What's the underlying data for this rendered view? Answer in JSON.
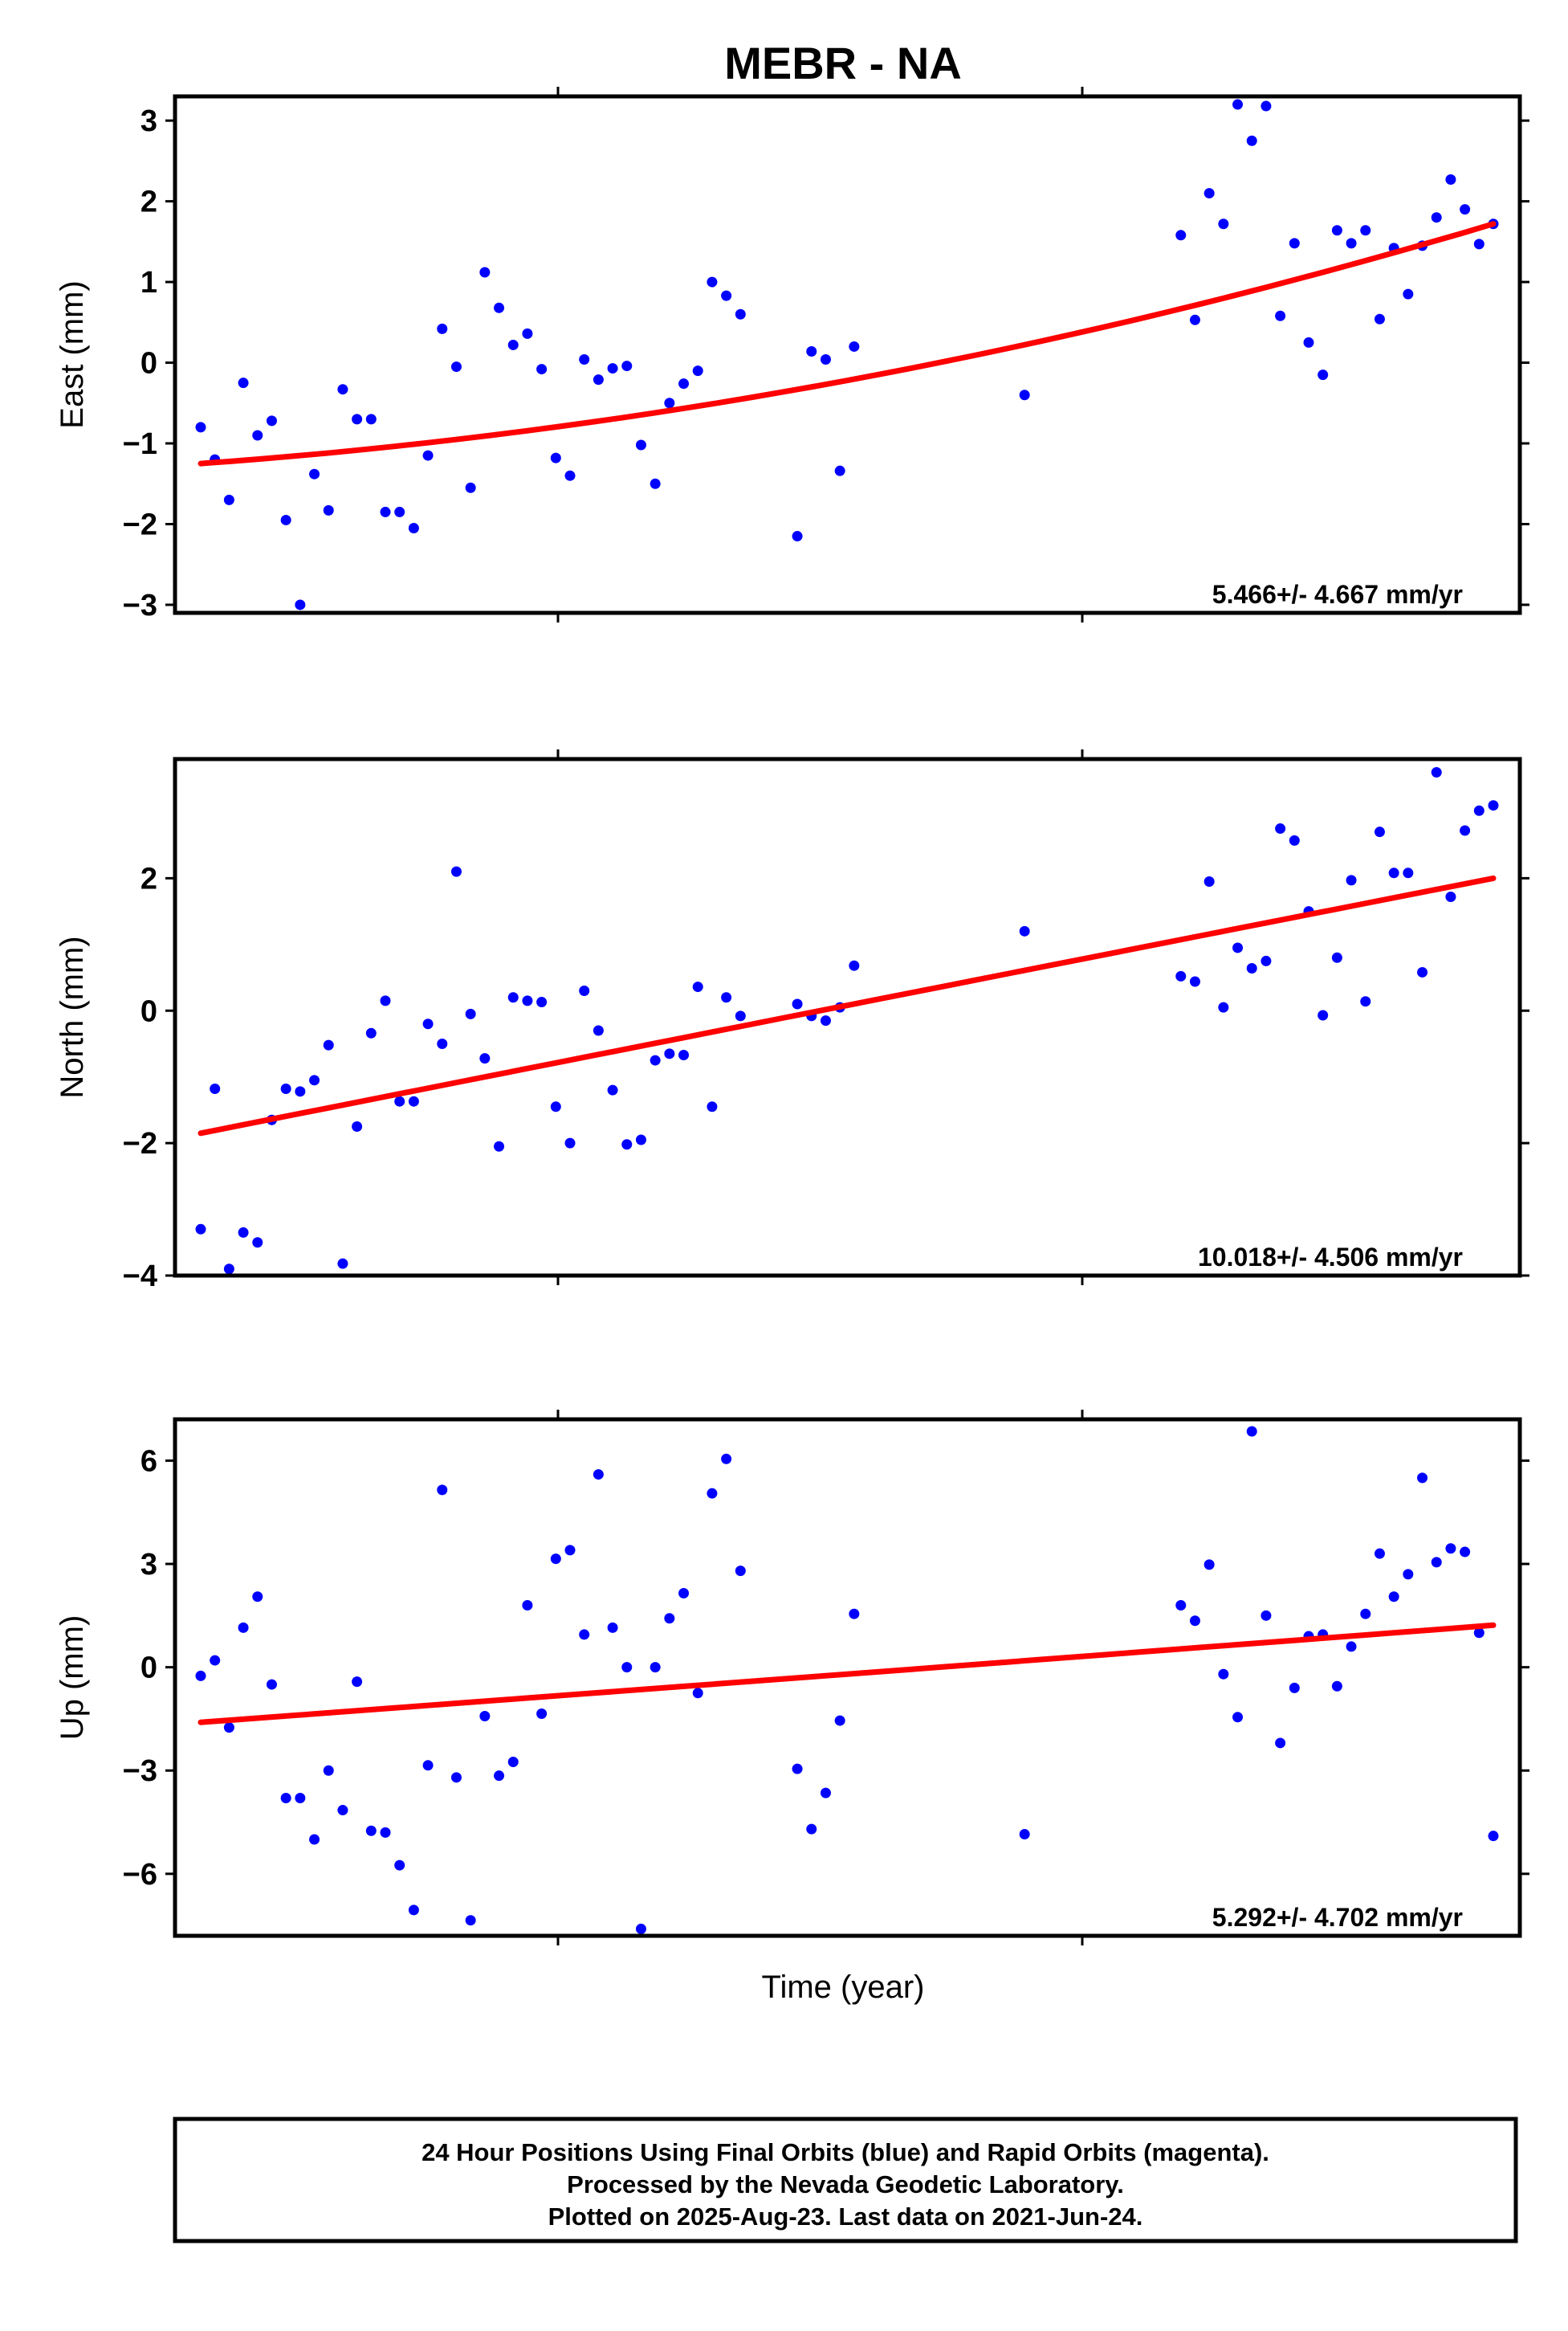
{
  "title": "MEBR - NA",
  "xlabel": "Time (year)",
  "colors": {
    "points": "#0000ff",
    "fit": "#ff0000",
    "frame": "#000000"
  },
  "footer": {
    "line1": "24 Hour Positions Using Final Orbits (blue) and Rapid Orbits (magenta).",
    "line2": "Processed by the Nevada Geodetic Laboratory.",
    "line3": "Plotted on 2025-Aug-23. Last data on 2021-Jun-24."
  },
  "chart_data": [
    {
      "type": "scatter",
      "ylabel": "East (mm)",
      "ylim": [
        -3.1,
        3.3
      ],
      "yticks": [
        -3,
        -2,
        -1,
        0,
        1,
        2,
        3
      ],
      "rate_label": "5.466+/- 4.667 mm/yr",
      "grid": false,
      "fit": [
        [
          0,
          -1.25
        ],
        [
          0.5,
          -0.22
        ],
        [
          1,
          1.72
        ]
      ],
      "points": [
        [
          -1,
          -0.8
        ],
        [
          0,
          -1.2
        ],
        [
          1,
          -1.7
        ],
        [
          2,
          -0.25
        ],
        [
          3,
          -0.9
        ],
        [
          4,
          -0.72
        ],
        [
          5,
          -1.95
        ],
        [
          6,
          -3.0
        ],
        [
          7,
          -1.38
        ],
        [
          8,
          -1.83
        ],
        [
          9,
          -0.33
        ],
        [
          10,
          -0.7
        ],
        [
          11,
          -0.7
        ],
        [
          12,
          -1.85
        ],
        [
          13,
          -1.85
        ],
        [
          14,
          -2.05
        ],
        [
          15,
          -1.15
        ],
        [
          16,
          0.42
        ],
        [
          17,
          -0.05
        ],
        [
          18,
          -1.55
        ],
        [
          19,
          1.12
        ],
        [
          20,
          0.68
        ],
        [
          21,
          0.22
        ],
        [
          22,
          0.36
        ],
        [
          23,
          -0.08
        ],
        [
          24,
          -1.18
        ],
        [
          25,
          -1.4
        ],
        [
          26,
          0.04
        ],
        [
          27,
          -0.21
        ],
        [
          28,
          -0.07
        ],
        [
          29,
          -0.04
        ],
        [
          30,
          -1.02
        ],
        [
          31,
          -1.5
        ],
        [
          32,
          -0.5
        ],
        [
          33,
          -0.26
        ],
        [
          34,
          -0.1
        ],
        [
          35,
          1.0
        ],
        [
          36,
          0.83
        ],
        [
          37,
          0.6
        ],
        [
          41,
          -2.15
        ],
        [
          42,
          0.14
        ],
        [
          43,
          0.04
        ],
        [
          44,
          -1.34
        ],
        [
          45,
          0.2
        ],
        [
          57,
          -0.4
        ],
        [
          68,
          1.58
        ],
        [
          69,
          0.53
        ],
        [
          70,
          2.1
        ],
        [
          71,
          1.72
        ],
        [
          72,
          3.2
        ],
        [
          73,
          2.75
        ],
        [
          74,
          3.18
        ],
        [
          75,
          0.58
        ],
        [
          76,
          1.48
        ],
        [
          77,
          0.25
        ],
        [
          78,
          -0.15
        ],
        [
          79,
          1.64
        ],
        [
          80,
          1.48
        ],
        [
          81,
          1.64
        ],
        [
          82,
          0.54
        ],
        [
          83,
          1.42
        ],
        [
          84,
          0.85
        ],
        [
          85,
          1.45
        ],
        [
          86,
          1.8
        ],
        [
          87,
          2.27
        ],
        [
          88,
          1.9
        ],
        [
          89,
          1.47
        ],
        [
          90,
          1.72
        ]
      ]
    },
    {
      "type": "scatter",
      "ylabel": "North (mm)",
      "ylim": [
        -4,
        3.8
      ],
      "yticks": [
        -4,
        -2,
        0,
        2
      ],
      "rate_label": "10.018+/- 4.506 mm/yr",
      "grid": false,
      "fit": [
        [
          0,
          -1.85
        ],
        [
          0.5,
          0.08
        ],
        [
          1,
          2.0
        ]
      ],
      "points": [
        [
          -1,
          -3.3
        ],
        [
          0,
          -1.18
        ],
        [
          1,
          -3.9
        ],
        [
          2,
          -3.35
        ],
        [
          3,
          -3.5
        ],
        [
          4,
          -1.65
        ],
        [
          5,
          -1.18
        ],
        [
          6,
          -1.22
        ],
        [
          7,
          -1.05
        ],
        [
          8,
          -0.52
        ],
        [
          9,
          -3.82
        ],
        [
          10,
          -1.75
        ],
        [
          11,
          -0.34
        ],
        [
          12,
          0.15
        ],
        [
          13,
          -1.37
        ],
        [
          14,
          -1.37
        ],
        [
          15,
          -0.2
        ],
        [
          16,
          -0.5
        ],
        [
          17,
          2.1
        ],
        [
          18,
          -0.05
        ],
        [
          19,
          -0.72
        ],
        [
          20,
          -2.05
        ],
        [
          21,
          0.2
        ],
        [
          22,
          0.15
        ],
        [
          23,
          0.13
        ],
        [
          24,
          -1.45
        ],
        [
          25,
          -2.0
        ],
        [
          26,
          0.3
        ],
        [
          27,
          -0.3
        ],
        [
          28,
          -1.2
        ],
        [
          29,
          -2.02
        ],
        [
          30,
          -1.95
        ],
        [
          31,
          -0.75
        ],
        [
          32,
          -0.65
        ],
        [
          33,
          -0.67
        ],
        [
          34,
          0.36
        ],
        [
          35,
          -1.45
        ],
        [
          36,
          0.2
        ],
        [
          37,
          -0.08
        ],
        [
          41,
          0.1
        ],
        [
          42,
          -0.08
        ],
        [
          43,
          -0.15
        ],
        [
          44,
          0.05
        ],
        [
          45,
          0.68
        ],
        [
          57,
          1.2
        ],
        [
          68,
          0.52
        ],
        [
          69,
          0.44
        ],
        [
          70,
          1.95
        ],
        [
          71,
          0.05
        ],
        [
          72,
          0.95
        ],
        [
          73,
          0.64
        ],
        [
          74,
          0.75
        ],
        [
          75,
          2.75
        ],
        [
          76,
          2.57
        ],
        [
          77,
          1.5
        ],
        [
          78,
          -0.07
        ],
        [
          79,
          0.8
        ],
        [
          80,
          1.97
        ],
        [
          81,
          0.14
        ],
        [
          82,
          2.7
        ],
        [
          83,
          2.08
        ],
        [
          84,
          2.08
        ],
        [
          85,
          0.58
        ],
        [
          86,
          3.6
        ],
        [
          87,
          1.72
        ],
        [
          88,
          2.72
        ],
        [
          89,
          3.02
        ],
        [
          90,
          3.1
        ]
      ]
    },
    {
      "type": "scatter",
      "ylabel": "Up (mm)",
      "ylim": [
        -7.8,
        7.2
      ],
      "yticks": [
        -6,
        -3,
        0,
        3,
        6
      ],
      "rate_label": "5.292+/- 4.702 mm/yr",
      "grid": false,
      "fit": [
        [
          0,
          -1.6
        ],
        [
          0.5,
          -0.2
        ],
        [
          1,
          1.22
        ]
      ],
      "points": [
        [
          -1,
          -0.25
        ],
        [
          0,
          0.2
        ],
        [
          1,
          -1.75
        ],
        [
          2,
          1.15
        ],
        [
          3,
          2.05
        ],
        [
          4,
          -0.5
        ],
        [
          5,
          -3.8
        ],
        [
          6,
          -3.8
        ],
        [
          7,
          -5.0
        ],
        [
          8,
          -3.0
        ],
        [
          9,
          -4.15
        ],
        [
          10,
          -0.42
        ],
        [
          11,
          -4.75
        ],
        [
          12,
          -4.8
        ],
        [
          13,
          -5.75
        ],
        [
          14,
          -7.05
        ],
        [
          15,
          -2.85
        ],
        [
          16,
          5.15
        ],
        [
          17,
          -3.2
        ],
        [
          18,
          -7.35
        ],
        [
          19,
          -1.42
        ],
        [
          20,
          -3.15
        ],
        [
          21,
          -2.75
        ],
        [
          22,
          1.8
        ],
        [
          23,
          -1.35
        ],
        [
          24,
          3.15
        ],
        [
          25,
          3.4
        ],
        [
          26,
          0.95
        ],
        [
          27,
          5.6
        ],
        [
          28,
          1.15
        ],
        [
          29,
          0.0
        ],
        [
          30,
          -7.6
        ],
        [
          31,
          0.0
        ],
        [
          32,
          1.42
        ],
        [
          33,
          2.15
        ],
        [
          34,
          -0.75
        ],
        [
          35,
          5.05
        ],
        [
          36,
          6.05
        ],
        [
          37,
          2.8
        ],
        [
          41,
          -2.95
        ],
        [
          42,
          -4.7
        ],
        [
          43,
          -3.65
        ],
        [
          44,
          -1.55
        ],
        [
          45,
          1.55
        ],
        [
          57,
          -4.85
        ],
        [
          68,
          1.8
        ],
        [
          69,
          1.35
        ],
        [
          70,
          2.98
        ],
        [
          71,
          -0.2
        ],
        [
          72,
          -1.45
        ],
        [
          73,
          6.85
        ],
        [
          74,
          1.5
        ],
        [
          75,
          -2.2
        ],
        [
          76,
          -0.6
        ],
        [
          77,
          0.9
        ],
        [
          78,
          0.95
        ],
        [
          79,
          -0.55
        ],
        [
          80,
          0.6
        ],
        [
          81,
          1.55
        ],
        [
          82,
          3.3
        ],
        [
          83,
          2.05
        ],
        [
          84,
          2.7
        ],
        [
          85,
          5.5
        ],
        [
          86,
          3.05
        ],
        [
          87,
          3.45
        ],
        [
          88,
          3.35
        ],
        [
          89,
          1.0
        ],
        [
          90,
          -4.9
        ]
      ]
    }
  ]
}
